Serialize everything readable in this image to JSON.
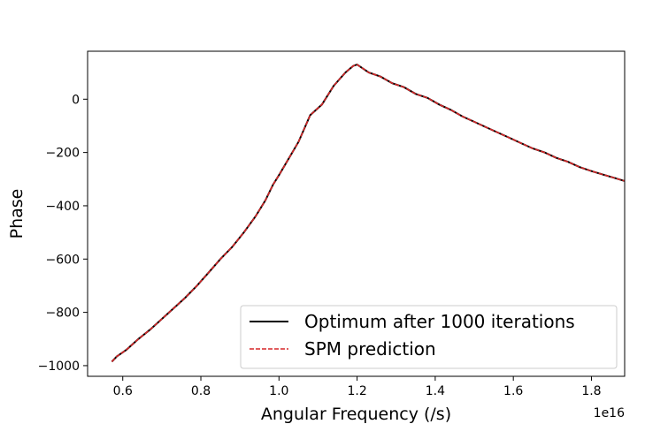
{
  "chart_data": {
    "type": "line",
    "title": "",
    "xlabel": "Angular Frequency (/s)",
    "ylabel": "Phase",
    "x_offset_label": "1e16",
    "xlim": [
      0.51,
      1.885
    ],
    "ylim": [
      -1040,
      180
    ],
    "x_ticks": [
      0.6,
      0.8,
      1.0,
      1.2,
      1.4,
      1.6,
      1.8
    ],
    "x_tick_labels": [
      "0.6",
      "0.8",
      "1.0",
      "1.2",
      "1.4",
      "1.6",
      "1.8"
    ],
    "y_ticks": [
      0,
      -200,
      -400,
      -600,
      -800,
      -1000
    ],
    "y_tick_labels": [
      "0",
      "−200",
      "−400",
      "−600",
      "−800",
      "−1000"
    ],
    "grid": false,
    "legend_position": "lower-right",
    "series": [
      {
        "name": "Optimum after 1000 iterations",
        "color": "#000000",
        "style": "solid",
        "x": [
          0.572,
          0.585,
          0.595,
          0.61,
          0.64,
          0.67,
          0.7,
          0.73,
          0.76,
          0.79,
          0.82,
          0.85,
          0.88,
          0.91,
          0.94,
          0.965,
          0.985,
          1.0,
          1.03,
          1.05,
          1.08,
          1.11,
          1.14,
          1.17,
          1.19,
          1.2,
          1.23,
          1.26,
          1.29,
          1.32,
          1.35,
          1.38,
          1.41,
          1.44,
          1.47,
          1.5,
          1.53,
          1.56,
          1.59,
          1.62,
          1.65,
          1.68,
          1.71,
          1.74,
          1.77,
          1.8,
          1.83,
          1.86,
          1.885
        ],
        "y": [
          -985,
          -965,
          -955,
          -940,
          -900,
          -865,
          -825,
          -785,
          -745,
          -700,
          -650,
          -600,
          -555,
          -500,
          -440,
          -380,
          -320,
          -285,
          -210,
          -160,
          -60,
          -20,
          50,
          100,
          125,
          130,
          100,
          85,
          60,
          45,
          20,
          5,
          -20,
          -40,
          -65,
          -85,
          -105,
          -125,
          -145,
          -165,
          -185,
          -200,
          -220,
          -235,
          -255,
          -270,
          -283,
          -296,
          -307
        ]
      },
      {
        "name": "SPM prediction",
        "color": "#d62728",
        "style": "dashed",
        "x": [
          0.572,
          0.585,
          0.595,
          0.61,
          0.64,
          0.67,
          0.7,
          0.73,
          0.76,
          0.79,
          0.82,
          0.85,
          0.88,
          0.91,
          0.94,
          0.965,
          0.985,
          1.0,
          1.03,
          1.05,
          1.08,
          1.11,
          1.14,
          1.17,
          1.19,
          1.2,
          1.23,
          1.26,
          1.29,
          1.32,
          1.35,
          1.38,
          1.41,
          1.44,
          1.47,
          1.5,
          1.53,
          1.56,
          1.59,
          1.62,
          1.65,
          1.68,
          1.71,
          1.74,
          1.77,
          1.8,
          1.83,
          1.86,
          1.885
        ],
        "y": [
          -985,
          -965,
          -955,
          -940,
          -900,
          -865,
          -825,
          -785,
          -745,
          -700,
          -650,
          -600,
          -555,
          -500,
          -440,
          -380,
          -320,
          -285,
          -210,
          -160,
          -60,
          -20,
          50,
          100,
          125,
          130,
          100,
          85,
          60,
          45,
          20,
          5,
          -20,
          -40,
          -65,
          -85,
          -105,
          -125,
          -145,
          -165,
          -185,
          -200,
          -220,
          -235,
          -255,
          -270,
          -283,
          -296,
          -307
        ]
      }
    ]
  }
}
